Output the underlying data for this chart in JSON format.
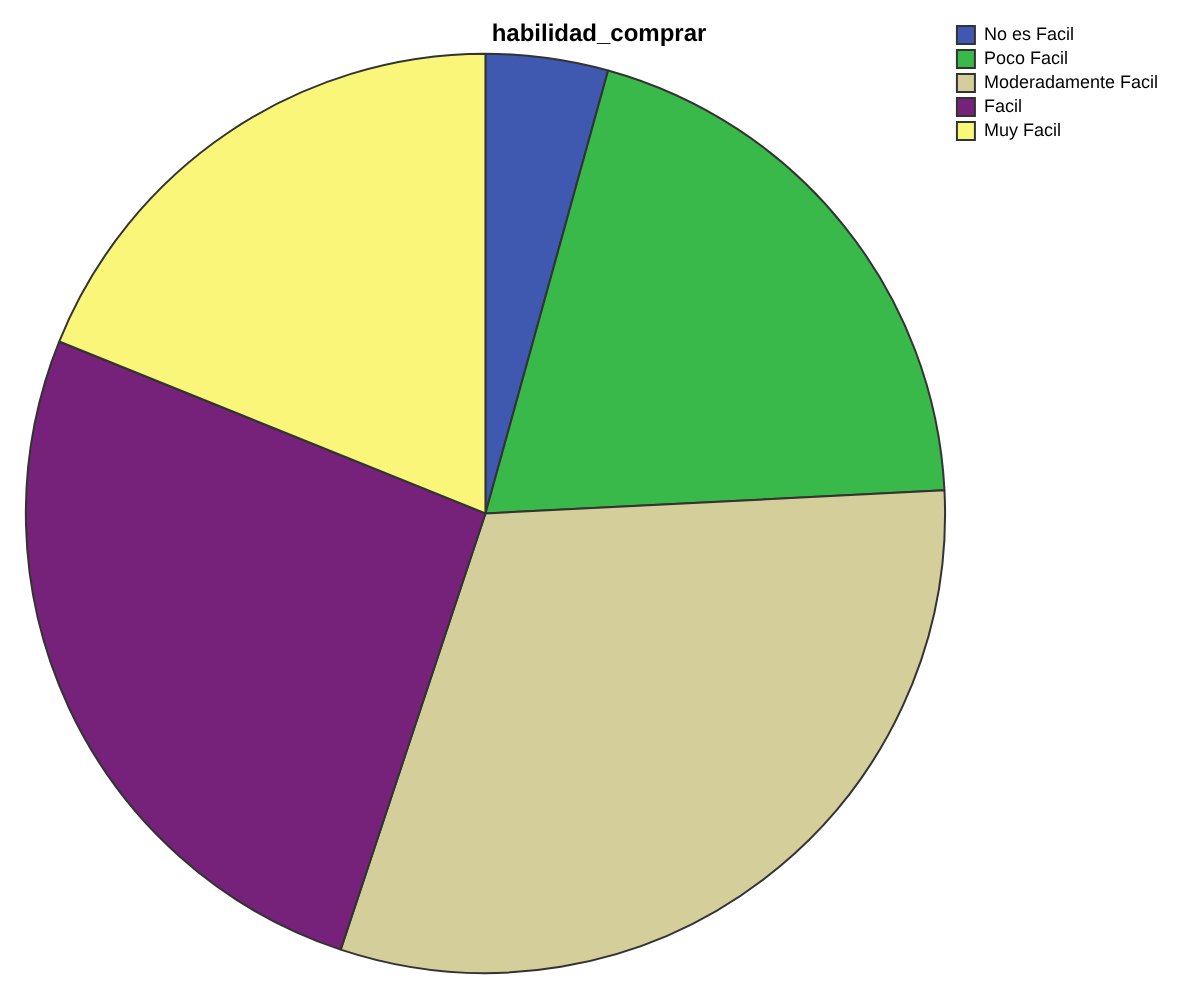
{
  "chart_data": {
    "type": "pie",
    "title": "habilidad_comprar",
    "categories": [
      "No es Facil",
      "Poco Facil",
      "Moderadamente Facil",
      "Facil",
      "Muy Facil"
    ],
    "values": [
      4.3,
      19.9,
      30.9,
      26.0,
      18.9
    ],
    "colors": [
      "#3f58b0",
      "#38b94a",
      "#d4cf9a",
      "#76227a",
      "#f9f67a"
    ],
    "legend": "top right"
  }
}
